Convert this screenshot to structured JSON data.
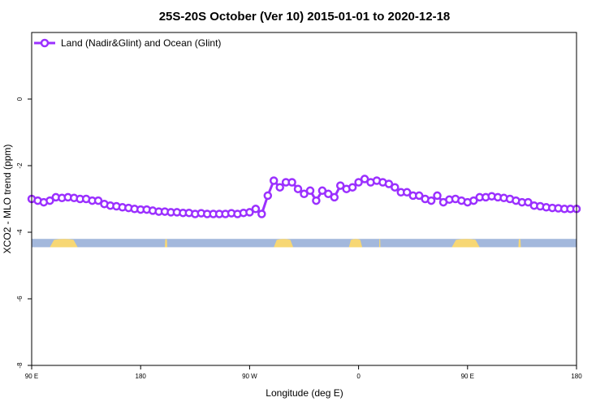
{
  "chart_data": {
    "type": "line",
    "title": "25S-20S October (Ver 10)   2015-01-01 to 2020-12-18",
    "xlabel": "Longitude (deg E)",
    "ylabel": "XCO2 - MLO trend (ppm)",
    "x_ticks": [
      "90 E",
      "180",
      "90 W",
      "0",
      "90 E",
      "180"
    ],
    "y_ticks": [
      "0",
      "-2",
      "-4",
      "-6",
      "-8"
    ],
    "ylim": [
      -8,
      2
    ],
    "legend": {
      "position": "top-left",
      "entries": [
        "Land (Nadir&Glint) and Ocean (Glint)"
      ]
    },
    "colors": {
      "series": "#9b30ff",
      "ocean": "#a3b8dc",
      "land": "#f7d774"
    },
    "series": [
      {
        "name": "Land (Nadir&Glint) and Ocean (Glint)",
        "x": [
          90,
          95,
          100,
          105,
          110,
          115,
          120,
          125,
          130,
          135,
          140,
          145,
          150,
          155,
          160,
          165,
          170,
          175,
          180,
          185,
          190,
          195,
          200,
          205,
          210,
          215,
          220,
          225,
          230,
          235,
          240,
          245,
          250,
          255,
          260,
          265,
          270,
          275,
          280,
          285,
          290,
          295,
          300,
          305,
          310,
          315,
          320,
          325,
          330,
          335,
          340,
          345,
          350,
          355,
          360,
          365,
          370,
          375,
          380,
          385,
          390,
          395,
          400,
          405,
          410,
          415,
          420,
          425,
          430,
          435,
          440,
          445,
          450,
          455,
          460,
          465,
          470,
          475,
          480,
          485,
          490,
          495,
          500,
          505,
          510,
          515,
          520,
          525,
          530,
          535,
          540
        ],
        "y": [
          -3.0,
          -3.05,
          -3.1,
          -3.05,
          -2.95,
          -2.97,
          -2.95,
          -2.97,
          -3.0,
          -3.0,
          -3.05,
          -3.05,
          -3.15,
          -3.2,
          -3.22,
          -3.25,
          -3.27,
          -3.3,
          -3.32,
          -3.32,
          -3.35,
          -3.38,
          -3.38,
          -3.4,
          -3.4,
          -3.42,
          -3.42,
          -3.45,
          -3.43,
          -3.45,
          -3.45,
          -3.45,
          -3.45,
          -3.43,
          -3.45,
          -3.42,
          -3.4,
          -3.3,
          -3.45,
          -2.9,
          -2.45,
          -2.65,
          -2.5,
          -2.5,
          -2.7,
          -2.85,
          -2.75,
          -3.05,
          -2.75,
          -2.85,
          -2.95,
          -2.6,
          -2.7,
          -2.65,
          -2.5,
          -2.4,
          -2.5,
          -2.45,
          -2.5,
          -2.55,
          -2.65,
          -2.8,
          -2.8,
          -2.9,
          -2.9,
          -3.0,
          -3.05,
          -2.9,
          -3.1,
          -3.02,
          -3.0,
          -3.05,
          -3.1,
          -3.05,
          -2.95,
          -2.95,
          -2.92,
          -2.95,
          -2.97,
          -3.0,
          -3.05,
          -3.1,
          -3.1,
          -3.2,
          -3.22,
          -3.25,
          -3.27,
          -3.28,
          -3.3,
          -3.3,
          -3.3
        ]
      }
    ],
    "land_ocean_strip": {
      "y_range": [
        -4.45,
        -4.2
      ],
      "land_segments": [
        [
          105,
          128
        ],
        [
          200,
          202
        ],
        [
          290,
          306
        ],
        [
          352,
          363
        ],
        [
          377,
          378
        ],
        [
          437,
          460
        ],
        [
          492,
          494
        ]
      ]
    }
  }
}
